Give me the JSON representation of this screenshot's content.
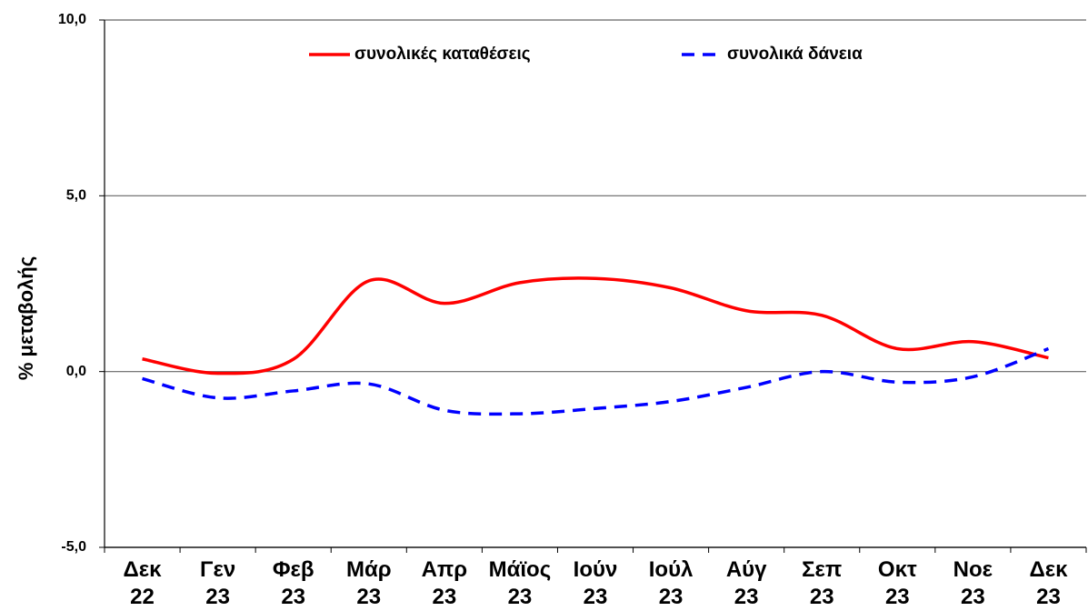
{
  "chart_data": {
    "type": "line",
    "y_label": "% μεταβολής",
    "categories": [
      "Δεκ 22",
      "Γεν 23",
      "Φεβ 23",
      "Μάρ 23",
      "Απρ 23",
      "Μάϊος 23",
      "Ιούν 23",
      "Ιούλ 23",
      "Αύγ 23",
      "Σεπ 23",
      "Οκτ 23",
      "Νοε 23",
      "Δεκ 23"
    ],
    "series": [
      {
        "name": "συνολικές καταθέσεις",
        "color": "#ff0000",
        "dash": false,
        "values": [
          0.36,
          -0.05,
          0.35,
          2.58,
          1.94,
          2.53,
          2.65,
          2.38,
          1.73,
          1.6,
          0.65,
          0.85,
          0.39
        ]
      },
      {
        "name": "συνολικά δάνεια",
        "color": "#0000ff",
        "dash": true,
        "values": [
          -0.2,
          -0.75,
          -0.55,
          -0.35,
          -1.1,
          -1.2,
          -1.05,
          -0.85,
          -0.45,
          0.0,
          -0.3,
          -0.15,
          0.65
        ]
      }
    ],
    "ylim": [
      -5,
      10
    ],
    "yticks": [
      {
        "value": -5,
        "label": "-5,0"
      },
      {
        "value": 0,
        "label": "0,0"
      },
      {
        "value": 5,
        "label": "5,0"
      },
      {
        "value": 10,
        "label": "10,0"
      }
    ],
    "grid": true
  }
}
